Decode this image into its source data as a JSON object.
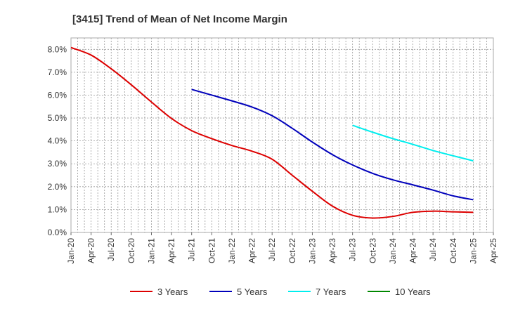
{
  "chart_data": {
    "type": "line",
    "title": "[3415]  Trend of Mean of Net Income Margin",
    "xlabel": "",
    "ylabel": "",
    "ylim": [
      0,
      8.5
    ],
    "y_ticks": [
      0,
      1,
      2,
      3,
      4,
      5,
      6,
      7,
      8
    ],
    "y_tick_labels": [
      "0.0%",
      "1.0%",
      "2.0%",
      "3.0%",
      "4.0%",
      "5.0%",
      "6.0%",
      "7.0%",
      "8.0%"
    ],
    "x_tick_labels": [
      "Jan-20",
      "Apr-20",
      "Jul-20",
      "Oct-20",
      "Jan-21",
      "Apr-21",
      "Jul-21",
      "Oct-21",
      "Jan-22",
      "Apr-22",
      "Jul-22",
      "Oct-22",
      "Jan-23",
      "Apr-23",
      "Jul-23",
      "Oct-23",
      "Jan-24",
      "Apr-24",
      "Jul-24",
      "Oct-24",
      "Jan-25",
      "Apr-25"
    ],
    "x_unit": "quarter",
    "grid": true,
    "legend_position": "bottom",
    "series": [
      {
        "name": "3 Years",
        "color": "#dd0000",
        "x": [
          "Jan-20",
          "Apr-20",
          "Jul-20",
          "Oct-20",
          "Jan-21",
          "Apr-21",
          "Jul-21",
          "Oct-21",
          "Jan-22",
          "Apr-22",
          "Jul-22",
          "Oct-22",
          "Jan-23",
          "Apr-23",
          "Jul-23",
          "Oct-23",
          "Jan-24",
          "Apr-24",
          "Jul-24",
          "Oct-24",
          "Jan-25"
        ],
        "values": [
          8.08,
          7.75,
          7.15,
          6.45,
          5.7,
          4.98,
          4.45,
          4.1,
          3.8,
          3.55,
          3.2,
          2.5,
          1.8,
          1.15,
          0.75,
          0.63,
          0.7,
          0.88,
          0.93,
          0.9,
          0.88
        ]
      },
      {
        "name": "5 Years",
        "color": "#0000bb",
        "x": [
          "Jul-21",
          "Oct-21",
          "Jan-22",
          "Apr-22",
          "Jul-22",
          "Oct-22",
          "Jan-23",
          "Apr-23",
          "Jul-23",
          "Oct-23",
          "Jan-24",
          "Apr-24",
          "Jul-24",
          "Oct-24",
          "Jan-25"
        ],
        "values": [
          6.25,
          6.0,
          5.75,
          5.48,
          5.1,
          4.55,
          3.95,
          3.4,
          2.95,
          2.58,
          2.3,
          2.08,
          1.85,
          1.6,
          1.43
        ]
      },
      {
        "name": "7 Years",
        "color": "#00eeee",
        "x": [
          "Jul-23",
          "Oct-23",
          "Jan-24",
          "Apr-24",
          "Jul-24",
          "Oct-24",
          "Jan-25"
        ],
        "values": [
          4.68,
          4.38,
          4.1,
          3.85,
          3.58,
          3.35,
          3.13
        ]
      },
      {
        "name": "10 Years",
        "color": "#008800",
        "x": [],
        "values": []
      }
    ]
  }
}
